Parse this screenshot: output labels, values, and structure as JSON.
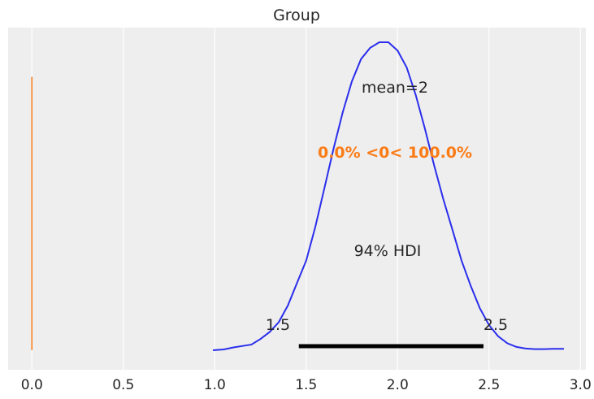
{
  "chart_data": {
    "type": "area",
    "title": "Group",
    "xlabel": "",
    "ylabel": "",
    "xlim": [
      -0.13,
      3.03
    ],
    "ylim": [
      0,
      1.05
    ],
    "xticks": [
      0.0,
      0.5,
      1.0,
      1.5,
      2.0,
      2.5,
      3.0
    ],
    "xtick_labels": [
      "0.0",
      "0.5",
      "1.0",
      "1.5",
      "2.0",
      "2.5",
      "3.0"
    ],
    "grid": true,
    "series": [
      {
        "color": "#2a2eec",
        "x": [
          0.99,
          1.05,
          1.1,
          1.15,
          1.2,
          1.25,
          1.3,
          1.35,
          1.4,
          1.45,
          1.5,
          1.55,
          1.6,
          1.65,
          1.7,
          1.75,
          1.8,
          1.85,
          1.9,
          1.95,
          2.0,
          2.05,
          2.1,
          2.15,
          2.2,
          2.25,
          2.3,
          2.35,
          2.4,
          2.45,
          2.5,
          2.55,
          2.6,
          2.65,
          2.7,
          2.75,
          2.8,
          2.85,
          2.91
        ],
        "y": [
          0.0,
          0.003,
          0.01,
          0.015,
          0.02,
          0.04,
          0.065,
          0.1,
          0.16,
          0.24,
          0.32,
          0.44,
          0.58,
          0.72,
          0.85,
          0.96,
          1.04,
          1.08,
          1.1,
          1.1,
          1.07,
          1.01,
          0.91,
          0.79,
          0.66,
          0.54,
          0.43,
          0.32,
          0.23,
          0.15,
          0.09,
          0.05,
          0.025,
          0.012,
          0.006,
          0.004,
          0.004,
          0.005,
          0.005
        ]
      }
    ],
    "reference_line": {
      "value": 0.0,
      "color": "#fa7c17",
      "y_range": [
        0,
        1.0
      ]
    },
    "annotations": {
      "mean_text": "mean=2",
      "ref_text": "0.0% <0< 100.0%",
      "hdi_text": "94% HDI",
      "hdi_low_text": "1.5",
      "hdi_high_text": "2.5"
    },
    "hdi": [
      1.46,
      2.47
    ],
    "colors": {
      "background": "#eeeeee",
      "grid": "#ffffff",
      "line": "#2a2eec",
      "reference": "#fa7c17",
      "hdi_bar": "#000000"
    }
  }
}
